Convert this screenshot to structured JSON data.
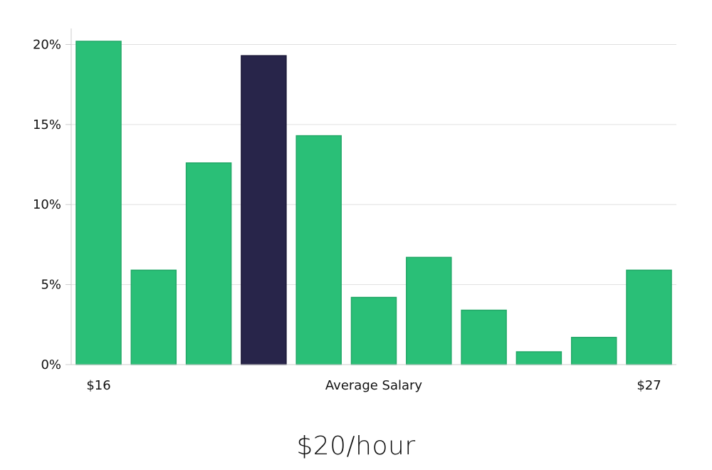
{
  "headline": "$20/hour",
  "colors": {
    "bar": "#2abf77",
    "bar_stroke": "#22a867",
    "highlight": "#28254a",
    "highlight_stroke": "#1b1838",
    "grid": "#e0e0e0",
    "axis": "#cccccc"
  },
  "chart_data": {
    "type": "bar",
    "title": "",
    "xlabel": "Average Salary",
    "ylabel": "",
    "categories": [
      "$16",
      "",
      "",
      "",
      "",
      "",
      "",
      "",
      "",
      "",
      "$27"
    ],
    "values": [
      20.2,
      5.9,
      12.6,
      19.3,
      14.3,
      4.2,
      6.7,
      3.4,
      0.8,
      1.7,
      5.9
    ],
    "highlight_index": 3,
    "ylim": [
      0,
      21
    ],
    "yticks": [
      0,
      5,
      10,
      15,
      20
    ],
    "ytick_labels": [
      "0%",
      "5%",
      "10%",
      "15%",
      "20%"
    ],
    "x_end_labels": [
      "$16",
      "$27"
    ],
    "grid": true,
    "legend": "none"
  }
}
